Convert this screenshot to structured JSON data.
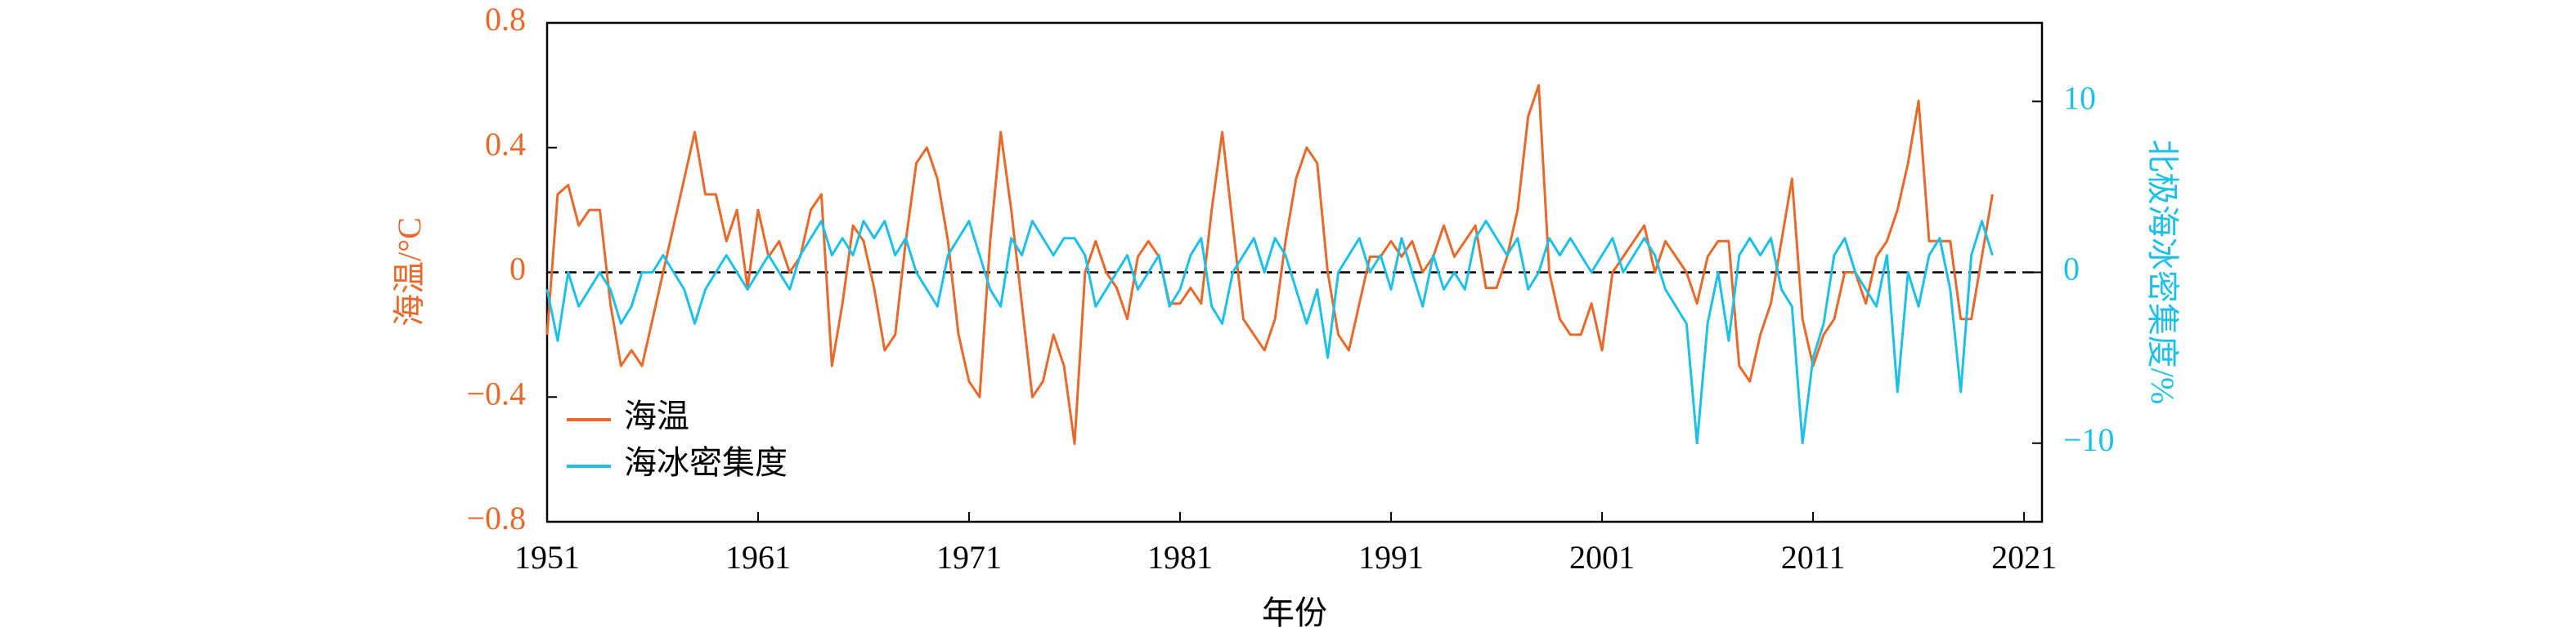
{
  "chart_data": {
    "type": "line",
    "x": [
      1951,
      1951.5,
      1952,
      1952.5,
      1953,
      1953.5,
      1954,
      1954.5,
      1955,
      1955.5,
      1956,
      1956.5,
      1957,
      1957.5,
      1958,
      1958.5,
      1959,
      1959.5,
      1960,
      1960.5,
      1961,
      1961.5,
      1962,
      1962.5,
      1963,
      1963.5,
      1964,
      1964.5,
      1965,
      1965.5,
      1966,
      1966.5,
      1967,
      1967.5,
      1968,
      1968.5,
      1969,
      1969.5,
      1970,
      1970.5,
      1971,
      1971.5,
      1972,
      1972.5,
      1973,
      1973.5,
      1974,
      1974.5,
      1975,
      1975.5,
      1976,
      1976.5,
      1977,
      1977.5,
      1978,
      1978.5,
      1979,
      1979.5,
      1980,
      1980.5,
      1981,
      1981.5,
      1982,
      1982.5,
      1983,
      1983.5,
      1984,
      1984.5,
      1985,
      1985.5,
      1986,
      1986.5,
      1987,
      1987.5,
      1988,
      1988.5,
      1989,
      1989.5,
      1990,
      1990.5,
      1991,
      1991.5,
      1992,
      1992.5,
      1993,
      1993.5,
      1994,
      1994.5,
      1995,
      1995.5,
      1996,
      1996.5,
      1997,
      1997.5,
      1998,
      1998.5,
      1999,
      1999.5,
      2000,
      2000.5,
      2001,
      2001.5,
      2002,
      2002.5,
      2003,
      2003.5,
      2004,
      2004.5,
      2005,
      2005.5,
      2006,
      2006.5,
      2007,
      2007.5,
      2008,
      2008.5,
      2009,
      2009.5,
      2010,
      2010.5,
      2011,
      2011.5,
      2012,
      2012.5,
      2013,
      2013.5,
      2014,
      2014.5,
      2015,
      2015.5,
      2016,
      2016.5,
      2017,
      2017.5,
      2018,
      2018.5,
      2019,
      2019.5
    ],
    "series": [
      {
        "name": "海温",
        "color": "#e8692a",
        "values": [
          -0.2,
          0.25,
          0.28,
          0.15,
          0.2,
          0.2,
          -0.1,
          -0.3,
          -0.25,
          -0.3,
          -0.15,
          0.0,
          0.15,
          0.3,
          0.45,
          0.25,
          0.25,
          0.1,
          0.2,
          -0.05,
          0.2,
          0.05,
          0.1,
          0.0,
          0.05,
          0.2,
          0.25,
          -0.3,
          -0.1,
          0.15,
          0.1,
          -0.05,
          -0.25,
          -0.2,
          0.1,
          0.35,
          0.4,
          0.3,
          0.1,
          -0.2,
          -0.35,
          -0.4,
          0.1,
          0.45,
          0.2,
          -0.1,
          -0.4,
          -0.35,
          -0.2,
          -0.3,
          -0.55,
          0.0,
          0.1,
          0.0,
          -0.05,
          -0.15,
          0.05,
          0.1,
          0.05,
          -0.1,
          -0.1,
          -0.05,
          -0.1,
          0.2,
          0.45,
          0.15,
          -0.15,
          -0.2,
          -0.25,
          -0.15,
          0.1,
          0.3,
          0.4,
          0.35,
          0.0,
          -0.2,
          -0.25,
          -0.1,
          0.05,
          0.05,
          0.1,
          0.05,
          0.1,
          0.0,
          0.05,
          0.15,
          0.05,
          0.1,
          0.15,
          -0.05,
          -0.05,
          0.05,
          0.2,
          0.5,
          0.6,
          0.0,
          -0.15,
          -0.2,
          -0.2,
          -0.1,
          -0.25,
          0.0,
          0.05,
          0.1,
          0.15,
          0.0,
          0.1,
          0.05,
          0.0,
          -0.1,
          0.05,
          0.1,
          0.1,
          -0.3,
          -0.35,
          -0.2,
          -0.1,
          0.1,
          0.3,
          -0.15,
          -0.3,
          -0.2,
          -0.15,
          0.0,
          0.0,
          -0.1,
          0.05,
          0.1,
          0.2,
          0.35,
          0.55,
          0.1,
          0.1,
          0.1,
          -0.15,
          -0.15,
          0.05,
          0.25
        ]
      },
      {
        "name": "海冰密集度",
        "color": "#1ec0e8",
        "axis": "y2",
        "values": [
          -1,
          -4,
          0,
          -2,
          -1,
          0,
          -1,
          -3,
          -2,
          0,
          0,
          1,
          0,
          -1,
          -3,
          -1,
          0,
          1,
          0,
          -1,
          0,
          1,
          0,
          -1,
          1,
          2,
          3,
          1,
          2,
          1,
          3,
          2,
          3,
          1,
          2,
          0,
          -1,
          -2,
          1,
          2,
          3,
          1,
          -1,
          -2,
          2,
          1,
          3,
          2,
          1,
          2,
          2,
          1,
          -2,
          -1,
          0,
          1,
          -1,
          0,
          1,
          -2,
          -1,
          1,
          2,
          -2,
          -3,
          0,
          1,
          2,
          0,
          2,
          1,
          -1,
          -3,
          -1,
          -5,
          0,
          1,
          2,
          0,
          1,
          -1,
          2,
          0,
          -2,
          1,
          -1,
          0,
          -1,
          2,
          3,
          2,
          1,
          2,
          -1,
          0,
          2,
          1,
          2,
          1,
          0,
          1,
          2,
          0,
          1,
          2,
          1,
          -1,
          -2,
          -3,
          -10,
          -3,
          0,
          -4,
          1,
          2,
          1,
          2,
          -1,
          -2,
          -10,
          -5,
          -3,
          1,
          2,
          0,
          -1,
          -2,
          1,
          -7,
          0,
          -2,
          1,
          2,
          -1,
          -7,
          1,
          3,
          1
        ]
      }
    ],
    "xlim": [
      1951,
      2021.85
    ],
    "xticks": [
      1951,
      1961,
      1971,
      1981,
      1991,
      2001,
      2011,
      2021
    ],
    "ylim": [
      -0.8,
      0.8
    ],
    "yticks": [
      {
        "value": -0.8,
        "label": "−0.8"
      },
      {
        "value": -0.4,
        "label": "−0.4"
      },
      0,
      0.4,
      0.8
    ],
    "y2lim": [
      -14.6,
      14.6
    ],
    "y2ticks": [
      {
        "value": -10,
        "label": "−10"
      },
      0,
      10
    ],
    "xlabel": "年份",
    "ylabel": "海温/°C",
    "y2label": "北极海冰密集度/%",
    "legend": "lower left"
  }
}
